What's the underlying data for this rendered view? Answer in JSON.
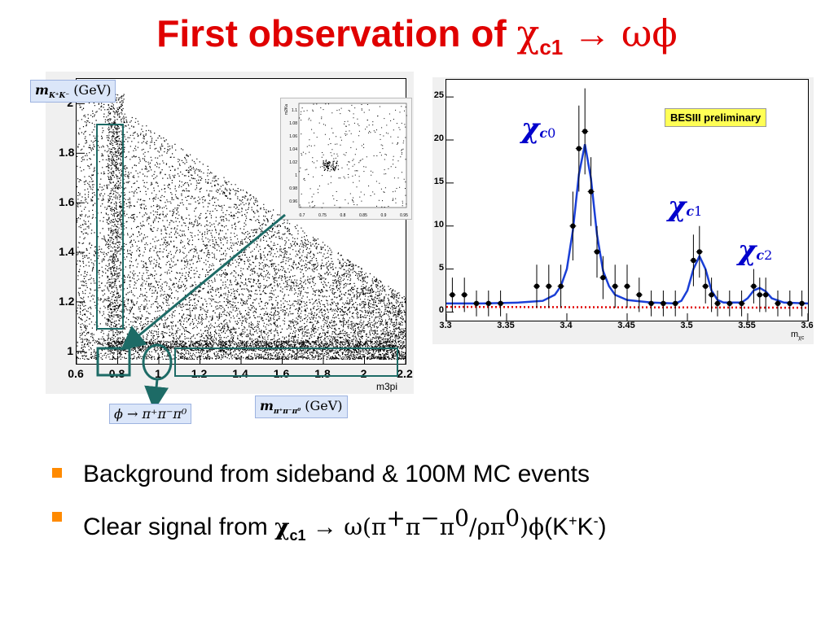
{
  "slide": {
    "title_text": "First observation of ",
    "title_chi": "χ",
    "title_sub": "c1",
    "title_arrow": " → ",
    "title_tail": "ωϕ"
  },
  "scatter_plot": {
    "y_axis_label": "m",
    "y_axis_label_sub": "K⁺K⁻",
    "y_axis_unit": "(GeV)",
    "x_axis_label": "m",
    "x_axis_label_sub": "π⁺π⁻π⁰",
    "x_axis_unit": "(GeV)",
    "x_axis_name": "m3pi",
    "phi_label": "ϕ → π⁺π⁻π⁰",
    "inset_y_title": "m2Ka",
    "chart_data": {
      "type": "scatter",
      "x_ticks": [
        "0.6",
        "0.8",
        "1",
        "1.2",
        "1.4",
        "1.6",
        "1.8",
        "2",
        "2.2"
      ],
      "y_ticks": [
        "1",
        "1.2",
        "1.4",
        "1.6",
        "1.8",
        "2"
      ],
      "xlim": [
        0.6,
        2.2
      ],
      "ylim": [
        0.95,
        2.1
      ],
      "signal_box": {
        "x": [
          0.75,
          0.86
        ],
        "y": [
          0.97,
          1.07
        ]
      },
      "sideband_vertical": {
        "x": [
          0.73,
          0.85
        ],
        "y": [
          1.17,
          2.05
        ]
      },
      "sideband_horizontal": {
        "x": [
          1.1,
          2.15
        ],
        "y": [
          0.97,
          1.07
        ]
      },
      "omega_circle": {
        "x": 1.0,
        "y": 1.02
      },
      "inset": {
        "x_ticks": [
          "0.7",
          "0.75",
          "0.8",
          "0.85",
          "0.9",
          "0.95"
        ],
        "y_ticks": [
          "0.96",
          "0.98",
          "1",
          "1.02",
          "1.04",
          "1.06",
          "1.08",
          "1.1"
        ]
      }
    }
  },
  "mass_plot": {
    "legend": "BESIII preliminary",
    "x_axis_name": "m",
    "x_axis_name_sub": "χc",
    "peak_labels": [
      {
        "chi": "χ",
        "c": "c",
        "n": "0"
      },
      {
        "chi": "χ",
        "c": "c",
        "n": "1"
      },
      {
        "chi": "χ",
        "c": "c",
        "n": "2"
      }
    ],
    "chart_data": {
      "type": "scatter",
      "x_ticks": [
        "3.3",
        "3.35",
        "3.4",
        "3.45",
        "3.5",
        "3.55",
        "3.6"
      ],
      "y_ticks": [
        "0",
        "5",
        "10",
        "15",
        "20",
        "25"
      ],
      "xlim": [
        3.3,
        3.6
      ],
      "ylim": [
        -1,
        27
      ],
      "points": [
        {
          "x": 3.305,
          "y": 2,
          "err": 2
        },
        {
          "x": 3.315,
          "y": 2,
          "err": 2
        },
        {
          "x": 3.325,
          "y": 1,
          "err": 1.5
        },
        {
          "x": 3.335,
          "y": 1,
          "err": 1.5
        },
        {
          "x": 3.345,
          "y": 1,
          "err": 1.5
        },
        {
          "x": 3.375,
          "y": 3,
          "err": 2.5
        },
        {
          "x": 3.385,
          "y": 3,
          "err": 2.5
        },
        {
          "x": 3.395,
          "y": 3,
          "err": 2.5
        },
        {
          "x": 3.405,
          "y": 10,
          "err": 4
        },
        {
          "x": 3.41,
          "y": 19,
          "err": 5
        },
        {
          "x": 3.415,
          "y": 21,
          "err": 5
        },
        {
          "x": 3.42,
          "y": 14,
          "err": 4
        },
        {
          "x": 3.425,
          "y": 7,
          "err": 3
        },
        {
          "x": 3.43,
          "y": 4,
          "err": 2.5
        },
        {
          "x": 3.44,
          "y": 3,
          "err": 2.5
        },
        {
          "x": 3.45,
          "y": 3,
          "err": 2.5
        },
        {
          "x": 3.46,
          "y": 2,
          "err": 2
        },
        {
          "x": 3.47,
          "y": 1,
          "err": 1.5
        },
        {
          "x": 3.48,
          "y": 1,
          "err": 1.5
        },
        {
          "x": 3.49,
          "y": 1,
          "err": 1.5
        },
        {
          "x": 3.505,
          "y": 6,
          "err": 3
        },
        {
          "x": 3.51,
          "y": 7,
          "err": 3
        },
        {
          "x": 3.515,
          "y": 3,
          "err": 2
        },
        {
          "x": 3.52,
          "y": 2,
          "err": 2
        },
        {
          "x": 3.525,
          "y": 1,
          "err": 1.5
        },
        {
          "x": 3.535,
          "y": 1,
          "err": 1.5
        },
        {
          "x": 3.545,
          "y": 1,
          "err": 1.5
        },
        {
          "x": 3.555,
          "y": 3,
          "err": 2
        },
        {
          "x": 3.56,
          "y": 2,
          "err": 2
        },
        {
          "x": 3.565,
          "y": 2,
          "err": 2
        },
        {
          "x": 3.575,
          "y": 1,
          "err": 1.5
        },
        {
          "x": 3.585,
          "y": 1,
          "err": 1.5
        },
        {
          "x": 3.595,
          "y": 1,
          "err": 1.5
        }
      ],
      "fit": [
        [
          3.3,
          1.0
        ],
        [
          3.33,
          1.0
        ],
        [
          3.36,
          1.1
        ],
        [
          3.38,
          1.3
        ],
        [
          3.39,
          2.0
        ],
        [
          3.395,
          3.0
        ],
        [
          3.4,
          5.0
        ],
        [
          3.405,
          9.5
        ],
        [
          3.41,
          16.0
        ],
        [
          3.415,
          19.5
        ],
        [
          3.42,
          15.5
        ],
        [
          3.425,
          9.0
        ],
        [
          3.43,
          4.8
        ],
        [
          3.435,
          3.0
        ],
        [
          3.44,
          2.0
        ],
        [
          3.45,
          1.4
        ],
        [
          3.47,
          1.1
        ],
        [
          3.49,
          1.0
        ],
        [
          3.495,
          1.3
        ],
        [
          3.5,
          2.5
        ],
        [
          3.505,
          5.0
        ],
        [
          3.51,
          6.5
        ],
        [
          3.515,
          5.0
        ],
        [
          3.52,
          2.5
        ],
        [
          3.525,
          1.4
        ],
        [
          3.53,
          1.1
        ],
        [
          3.545,
          1.1
        ],
        [
          3.55,
          1.6
        ],
        [
          3.555,
          2.5
        ],
        [
          3.56,
          2.8
        ],
        [
          3.565,
          2.4
        ],
        [
          3.57,
          1.6
        ],
        [
          3.58,
          1.1
        ],
        [
          3.6,
          1.0
        ]
      ],
      "background": [
        [
          3.3,
          0.6
        ],
        [
          3.6,
          0.5
        ]
      ]
    }
  },
  "bullets": {
    "b1": "Background from sideband & 100M MC events",
    "b2_pre": "Clear signal from ",
    "b2_chi": "χ",
    "b2_sub": "c1",
    "b2_arrow": " → ",
    "b2_omega": "ω(π",
    "b2_sup1": "+",
    "b2_pi2": "π",
    "b2_sup2": "−",
    "b2_pi3": "π",
    "b2_sup3": "0",
    "b2_rho": "/ρπ",
    "b2_sup4": "0",
    "b2_phi": ")ϕ",
    "b2_k1": "(K",
    "b2_sup5": "+",
    "b2_k2": "K",
    "b2_sup6": "-",
    "b2_end": ")"
  },
  "colors": {
    "title": "#e00000",
    "fit_line": "#1a3fd6",
    "background_line": "#e00000",
    "sideband_box": "#1d6b66",
    "peak_label": "#0000cc",
    "bullet_marker": "#ff8a00"
  }
}
